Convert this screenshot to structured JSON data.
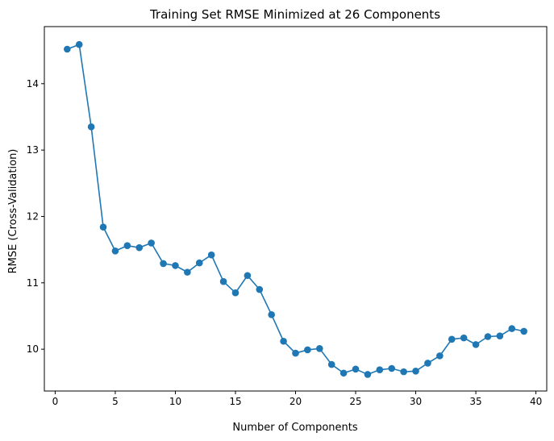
{
  "chart_data": {
    "type": "line",
    "title": "Training Set RMSE Minimized at 26 Components",
    "xlabel": "Number of Components",
    "ylabel": "RMSE (Cross-Validation)",
    "xlim": [
      -0.9,
      40.9
    ],
    "ylim": [
      9.37,
      14.86
    ],
    "xticks": [
      0,
      5,
      10,
      15,
      20,
      25,
      30,
      35,
      40
    ],
    "yticks": [
      10,
      11,
      12,
      13,
      14
    ],
    "grid": false,
    "color": "#1f77b4",
    "series": [
      {
        "x": [
          1,
          2,
          3,
          4,
          5,
          6,
          7,
          8,
          9,
          10,
          11,
          12,
          13,
          14,
          15,
          16,
          17,
          18,
          19,
          20,
          21,
          22,
          23,
          24,
          25,
          26,
          27,
          28,
          29,
          30,
          31,
          32,
          33,
          34,
          35,
          36,
          37,
          38,
          39
        ],
        "values": [
          14.52,
          14.59,
          13.35,
          11.84,
          11.48,
          11.56,
          11.53,
          11.6,
          11.29,
          11.26,
          11.16,
          11.3,
          11.42,
          11.02,
          10.85,
          11.11,
          10.9,
          10.52,
          10.12,
          9.94,
          9.99,
          10.01,
          9.77,
          9.64,
          9.7,
          9.62,
          9.69,
          9.71,
          9.66,
          9.67,
          9.79,
          9.9,
          10.15,
          10.17,
          10.07,
          10.19,
          10.2,
          10.31,
          10.27
        ]
      }
    ]
  }
}
